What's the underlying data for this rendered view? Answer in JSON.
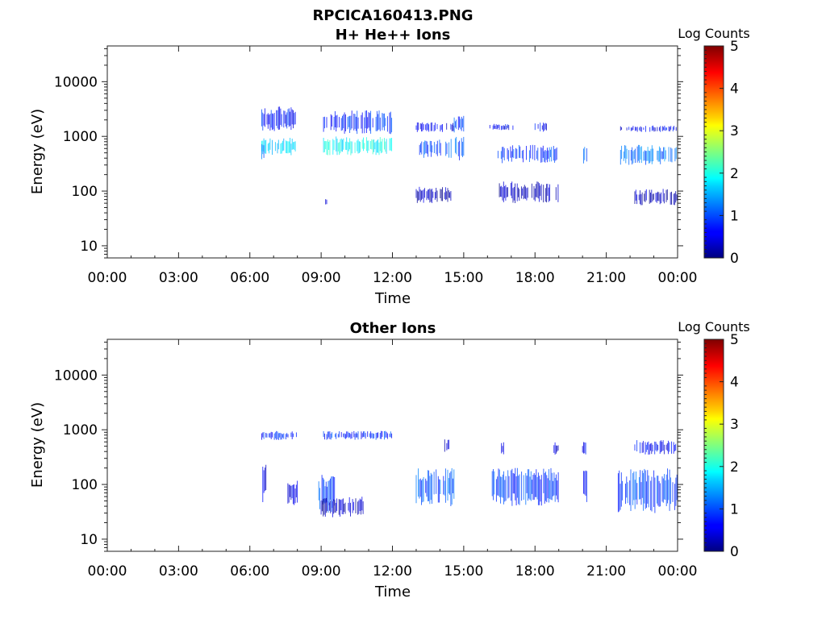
{
  "figure": {
    "title": "RPCICA160413.PNG"
  },
  "colorbar": {
    "label": "Log Counts",
    "ticks": [
      "0",
      "1",
      "2",
      "3",
      "4",
      "5"
    ],
    "range": [
      0,
      5
    ],
    "colormap": "jet"
  },
  "chart_data": [
    {
      "type": "heatmap",
      "title": "H+ He++ Ions",
      "xlabel": "Time",
      "ylabel": "Energy (eV)",
      "x_ticks": [
        "00:00",
        "03:00",
        "06:00",
        "09:00",
        "12:00",
        "15:00",
        "18:00",
        "21:00",
        "00:00"
      ],
      "xlim_hours": [
        0,
        24
      ],
      "y_scale": "log",
      "y_ticks": [
        10,
        100,
        1000,
        10000
      ],
      "y_tick_labels": [
        "10",
        "100",
        "1000",
        "10000"
      ],
      "ylim": [
        6,
        45000
      ],
      "patches": [
        {
          "t0": 6.5,
          "t1": 8.0,
          "e0": 1200,
          "e1": 3500,
          "level": 0.7
        },
        {
          "t0": 6.5,
          "t1": 8.0,
          "e0": 450,
          "e1": 950,
          "level": 1.7
        },
        {
          "t0": 6.5,
          "t1": 6.65,
          "e0": 380,
          "e1": 900,
          "level": 1.2
        },
        {
          "t0": 9.1,
          "t1": 12.0,
          "e0": 1100,
          "e1": 3000,
          "level": 0.8
        },
        {
          "t0": 9.1,
          "t1": 12.0,
          "e0": 450,
          "e1": 1000,
          "level": 1.9
        },
        {
          "t0": 9.1,
          "t1": 9.25,
          "e0": 50,
          "e1": 80,
          "level": 0.4
        },
        {
          "t0": 13.0,
          "t1": 14.6,
          "e0": 1200,
          "e1": 1800,
          "level": 0.6
        },
        {
          "t0": 13.1,
          "t1": 14.5,
          "e0": 400,
          "e1": 900,
          "level": 1.0
        },
        {
          "t0": 14.6,
          "t1": 15.0,
          "e0": 1100,
          "e1": 2500,
          "level": 0.9
        },
        {
          "t0": 14.6,
          "t1": 15.0,
          "e0": 350,
          "e1": 1000,
          "level": 1.0
        },
        {
          "t0": 13.0,
          "t1": 14.5,
          "e0": 60,
          "e1": 120,
          "level": 0.3
        },
        {
          "t0": 16.1,
          "t1": 17.1,
          "e0": 1300,
          "e1": 1700,
          "level": 0.6
        },
        {
          "t0": 16.4,
          "t1": 19.0,
          "e0": 320,
          "e1": 700,
          "level": 0.9
        },
        {
          "t0": 18.0,
          "t1": 18.5,
          "e0": 1200,
          "e1": 1800,
          "level": 0.6
        },
        {
          "t0": 16.5,
          "t1": 19.0,
          "e0": 60,
          "e1": 150,
          "level": 0.3
        },
        {
          "t0": 20.0,
          "t1": 20.2,
          "e0": 300,
          "e1": 650,
          "level": 1.0
        },
        {
          "t0": 21.6,
          "t1": 24.0,
          "e0": 1200,
          "e1": 1600,
          "level": 0.6
        },
        {
          "t0": 21.6,
          "t1": 24.0,
          "e0": 300,
          "e1": 700,
          "level": 1.2
        },
        {
          "t0": 22.2,
          "t1": 24.0,
          "e0": 55,
          "e1": 110,
          "level": 0.3
        }
      ]
    },
    {
      "type": "heatmap",
      "title": "Other Ions",
      "xlabel": "Time",
      "ylabel": "Energy (eV)",
      "x_ticks": [
        "00:00",
        "03:00",
        "06:00",
        "09:00",
        "12:00",
        "15:00",
        "18:00",
        "21:00",
        "00:00"
      ],
      "xlim_hours": [
        0,
        24
      ],
      "y_scale": "log",
      "y_ticks": [
        10,
        100,
        1000,
        10000
      ],
      "y_tick_labels": [
        "10",
        "100",
        "1000",
        "10000"
      ],
      "ylim": [
        6,
        45000
      ],
      "patches": [
        {
          "t0": 6.5,
          "t1": 8.0,
          "e0": 650,
          "e1": 950,
          "level": 0.8
        },
        {
          "t0": 9.1,
          "t1": 12.0,
          "e0": 650,
          "e1": 950,
          "level": 0.8
        },
        {
          "t0": 6.5,
          "t1": 6.7,
          "e0": 40,
          "e1": 300,
          "level": 0.5
        },
        {
          "t0": 7.6,
          "t1": 8.0,
          "e0": 40,
          "e1": 120,
          "level": 0.6
        },
        {
          "t0": 8.9,
          "t1": 9.6,
          "e0": 30,
          "e1": 150,
          "level": 0.9
        },
        {
          "t0": 9.0,
          "t1": 10.8,
          "e0": 25,
          "e1": 60,
          "level": 0.3
        },
        {
          "t0": 13.0,
          "t1": 14.6,
          "e0": 40,
          "e1": 200,
          "level": 1.0
        },
        {
          "t0": 14.2,
          "t1": 14.4,
          "e0": 350,
          "e1": 700,
          "level": 0.4
        },
        {
          "t0": 16.2,
          "t1": 19.0,
          "e0": 40,
          "e1": 200,
          "level": 0.9
        },
        {
          "t0": 16.5,
          "t1": 16.7,
          "e0": 350,
          "e1": 600,
          "level": 0.4
        },
        {
          "t0": 18.8,
          "t1": 19.0,
          "e0": 350,
          "e1": 600,
          "level": 0.4
        },
        {
          "t0": 20.0,
          "t1": 20.2,
          "e0": 45,
          "e1": 180,
          "level": 0.8
        },
        {
          "t0": 20.0,
          "t1": 20.2,
          "e0": 350,
          "e1": 600,
          "level": 0.6
        },
        {
          "t0": 21.5,
          "t1": 24.0,
          "e0": 30,
          "e1": 200,
          "level": 1.0
        },
        {
          "t0": 22.2,
          "t1": 24.0,
          "e0": 350,
          "e1": 650,
          "level": 0.6
        }
      ]
    }
  ]
}
